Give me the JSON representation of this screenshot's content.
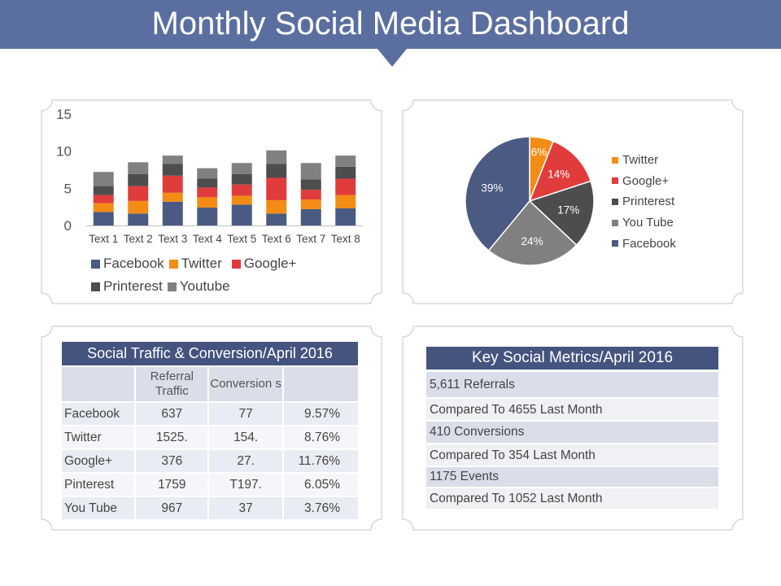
{
  "header": {
    "title": "Monthly Social Media Dashboard"
  },
  "colors": {
    "facebook": "#4a5a82",
    "twitter": "#f28c14",
    "google_plus": "#e03c3c",
    "printerest": "#4d4d4d",
    "youtube": "#808080",
    "banner": "#5a6fa0",
    "table_header": "#45547e"
  },
  "chart_data": [
    {
      "type": "bar",
      "stacked": true,
      "categories": [
        "Text 1",
        "Text 2",
        "Text 3",
        "Text 4",
        "Text 5",
        "Text 6",
        "Text 7",
        "Text 8"
      ],
      "series": [
        {
          "name": "Facebook",
          "color": "#4a5a82",
          "values": [
            1.8,
            1.6,
            3.2,
            2.4,
            2.8,
            1.6,
            2.2,
            2.3
          ]
        },
        {
          "name": "Twitter",
          "color": "#f28c14",
          "values": [
            1.2,
            1.7,
            1.2,
            1.4,
            1.2,
            1.8,
            1.3,
            1.8
          ]
        },
        {
          "name": "Google+",
          "color": "#e03c3c",
          "values": [
            1.1,
            2.0,
            2.3,
            1.3,
            1.5,
            3.0,
            1.3,
            2.2
          ]
        },
        {
          "name": "Printerest",
          "color": "#4d4d4d",
          "values": [
            1.2,
            1.6,
            1.6,
            1.2,
            1.4,
            1.9,
            1.4,
            1.6
          ]
        },
        {
          "name": "Youtube",
          "color": "#808080",
          "values": [
            1.9,
            1.6,
            1.1,
            1.4,
            1.5,
            1.8,
            2.2,
            1.5
          ]
        }
      ],
      "ylim": [
        0,
        15
      ],
      "yticks": [
        0,
        5,
        10,
        15
      ],
      "legend_position": "bottom",
      "title": "",
      "xlabel": "",
      "ylabel": ""
    },
    {
      "type": "pie",
      "start": "top",
      "direction": "clockwise",
      "slices": [
        {
          "label": "Twitter",
          "value": 6,
          "display": "6%",
          "color": "#f28c14"
        },
        {
          "label": "Google+",
          "value": 14,
          "display": "14%",
          "color": "#e03c3c"
        },
        {
          "label": "Printerest",
          "value": 17,
          "display": "17%",
          "color": "#4d4d4d"
        },
        {
          "label": "You Tube",
          "value": 24,
          "display": "24%",
          "color": "#808080"
        },
        {
          "label": "Facebook",
          "value": 39,
          "display": "39%",
          "color": "#4a5a82"
        }
      ],
      "legend_position": "right"
    }
  ],
  "traffic_table": {
    "title": "Social Traffic & Conversion/April 2016",
    "columns": [
      "",
      "Referral Traffic",
      "Conversion s",
      ""
    ],
    "rows": [
      [
        "Facebook",
        "637",
        "77",
        "9.57%"
      ],
      [
        "Twitter",
        "1525.",
        "154.",
        "8.76%"
      ],
      [
        "Google+",
        "376",
        "27.",
        "11.76%"
      ],
      [
        "Pinterest",
        "1759",
        "T197.",
        "6.05%"
      ],
      [
        "You Tube",
        "967",
        "37",
        "3.76%"
      ]
    ]
  },
  "metrics": {
    "title": "Key Social Metrics/April 2016",
    "items": [
      "5,611 Referrals",
      "Compared To 4655 Last Month",
      "410 Conversions",
      "Compared To 354 Last Month",
      "1175 Events",
      "Compared To 1052 Last Month"
    ]
  }
}
